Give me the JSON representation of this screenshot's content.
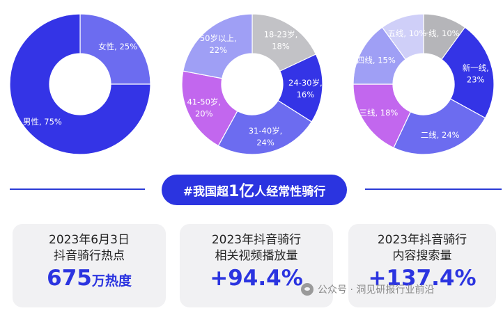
{
  "chart_data": [
    {
      "type": "pie",
      "labels": [
        "女性",
        "男性"
      ],
      "values": [
        25,
        75
      ],
      "display": [
        "女性, 25%",
        "男性, 75%"
      ],
      "colors": [
        "#6c6cf0",
        "#3434e6"
      ]
    },
    {
      "type": "pie",
      "labels": [
        "18-23岁",
        "24-30岁",
        "31-40岁",
        "41-50岁",
        "50岁以上"
      ],
      "values": [
        18,
        16,
        24,
        20,
        22
      ],
      "display": [
        [
          "18-23岁,",
          "18%"
        ],
        [
          "24-30岁,",
          "16%"
        ],
        [
          "31-40岁,",
          "24%"
        ],
        [
          "41-50岁,",
          "20%"
        ],
        [
          "50岁以上,",
          "22%"
        ]
      ],
      "colors": [
        "#c2c2c6",
        "#3434e6",
        "#6c6cf0",
        "#c267ee",
        "#9f9ff5"
      ]
    },
    {
      "type": "pie",
      "labels": [
        "一线",
        "新一线",
        "二线",
        "三线",
        "四线",
        "五线"
      ],
      "values": [
        10,
        23,
        24,
        18,
        15,
        10
      ],
      "display": [
        "一线, 10%",
        [
          "新一线,",
          "23%"
        ],
        "二线, 24%",
        "三线, 18%",
        "四线, 15%",
        "五线, 10%"
      ],
      "colors": [
        "#b5b5b9",
        "#3434e6",
        "#6c6cf0",
        "#c267ee",
        "#9f9ff5",
        "#cfcff8"
      ]
    }
  ],
  "banner": {
    "prefix": "#我国超",
    "highlight": "1亿",
    "suffix": "人经常性骑行"
  },
  "cards": [
    {
      "line1": "2023年6月3日",
      "line2": "抖音骑行热点",
      "value": "675",
      "unit": "万热度"
    },
    {
      "line1": "2023年抖音骑行",
      "line2": "相关视频播放量",
      "value": "+94.4%",
      "unit": ""
    },
    {
      "line1": "2023年抖音骑行",
      "line2": "内容搜索量",
      "value": "+137.4%",
      "unit": ""
    }
  ],
  "watermark": "公众号 · 洞见研报行业前沿"
}
